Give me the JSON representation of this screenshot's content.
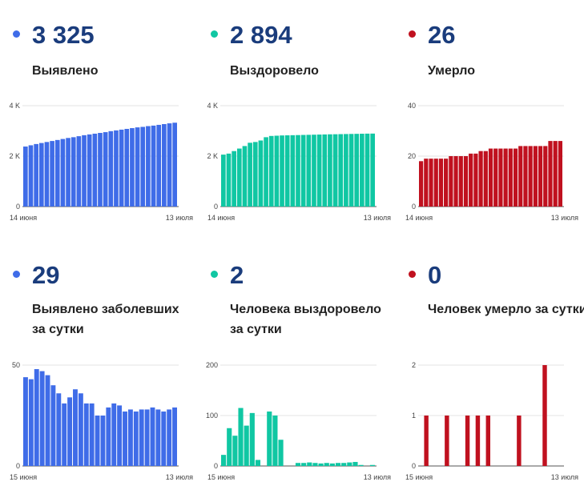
{
  "colors": {
    "infected": "#3f6ce8",
    "recovered": "#10c7a3",
    "deaths": "#c0111f"
  },
  "panels": {
    "total_infected": {
      "value": "3 325",
      "label": "Выявлено"
    },
    "total_recovered": {
      "value": "2 894",
      "label": "Выздоровело"
    },
    "total_deaths": {
      "value": "26",
      "label": "Умерло"
    },
    "daily_infected": {
      "value": "29",
      "label": "Выявлено заболевших за сутки"
    },
    "daily_recovered": {
      "value": "2",
      "label": "Человека выздоровело за сутки"
    },
    "daily_deaths": {
      "value": "0",
      "label": "Человек умерло за сутки"
    }
  },
  "chart_data": [
    {
      "id": "total_infected",
      "type": "bar",
      "x_start_label": "14 июня",
      "x_end_label": "13 июля",
      "y_ticks": [
        0,
        2000,
        4000
      ],
      "y_tick_labels": [
        "0",
        "2 K",
        "4 K"
      ],
      "ylim": [
        0,
        4000
      ],
      "values": [
        2380,
        2430,
        2480,
        2520,
        2560,
        2600,
        2640,
        2680,
        2720,
        2750,
        2790,
        2830,
        2860,
        2890,
        2920,
        2950,
        2990,
        3020,
        3050,
        3080,
        3110,
        3140,
        3160,
        3190,
        3210,
        3240,
        3270,
        3300,
        3325
      ]
    },
    {
      "id": "total_recovered",
      "type": "bar",
      "x_start_label": "14 июня",
      "x_end_label": "13 июля",
      "y_ticks": [
        0,
        2000,
        4000
      ],
      "y_tick_labels": [
        "0",
        "2 K",
        "4 K"
      ],
      "ylim": [
        0,
        4000
      ],
      "values": [
        2060,
        2100,
        2200,
        2300,
        2400,
        2530,
        2560,
        2620,
        2750,
        2800,
        2810,
        2820,
        2825,
        2830,
        2835,
        2840,
        2845,
        2850,
        2855,
        2860,
        2865,
        2868,
        2872,
        2876,
        2880,
        2884,
        2888,
        2892,
        2894
      ]
    },
    {
      "id": "total_deaths",
      "type": "bar",
      "x_start_label": "14 июня",
      "x_end_label": "13 июля",
      "y_ticks": [
        0,
        20,
        40
      ],
      "y_tick_labels": [
        "0",
        "20",
        "40"
      ],
      "ylim": [
        0,
        40
      ],
      "values": [
        18,
        19,
        19,
        19,
        19,
        19,
        20,
        20,
        20,
        20,
        21,
        21,
        22,
        22,
        23,
        23,
        23,
        23,
        23,
        23,
        24,
        24,
        24,
        24,
        24,
        24,
        26,
        26,
        26
      ]
    },
    {
      "id": "daily_infected",
      "type": "bar",
      "x_start_label": "15 июня",
      "x_end_label": "13 июля",
      "y_ticks": [
        0,
        50
      ],
      "y_tick_labels": [
        "0",
        "50"
      ],
      "ylim": [
        0,
        50
      ],
      "values": [
        44,
        43,
        48,
        47,
        45,
        40,
        36,
        31,
        34,
        38,
        36,
        31,
        31,
        25,
        25,
        29,
        31,
        30,
        27,
        28,
        27,
        28,
        28,
        29,
        28,
        27,
        28,
        29
      ]
    },
    {
      "id": "daily_recovered",
      "type": "bar",
      "x_start_label": "15 июня",
      "x_end_label": "13 июля",
      "y_ticks": [
        0,
        100,
        200
      ],
      "y_tick_labels": [
        "0",
        "100",
        "200"
      ],
      "ylim": [
        0,
        200
      ],
      "values": [
        22,
        75,
        60,
        115,
        80,
        105,
        12,
        0,
        108,
        100,
        52,
        0,
        0,
        6,
        6,
        7,
        6,
        5,
        6,
        5,
        6,
        6,
        7,
        8,
        2,
        0,
        2
      ]
    },
    {
      "id": "daily_deaths",
      "type": "bar",
      "x_start_label": "15 июня",
      "x_end_label": "13 июля",
      "y_ticks": [
        0,
        1,
        2
      ],
      "y_tick_labels": [
        "0",
        "1",
        "2"
      ],
      "ylim": [
        0,
        2
      ],
      "values": [
        0,
        1,
        0,
        0,
        0,
        1,
        0,
        0,
        0,
        1,
        0,
        1,
        0,
        1,
        0,
        0,
        0,
        0,
        0,
        1,
        0,
        0,
        0,
        0,
        2,
        0,
        0,
        0
      ]
    }
  ]
}
